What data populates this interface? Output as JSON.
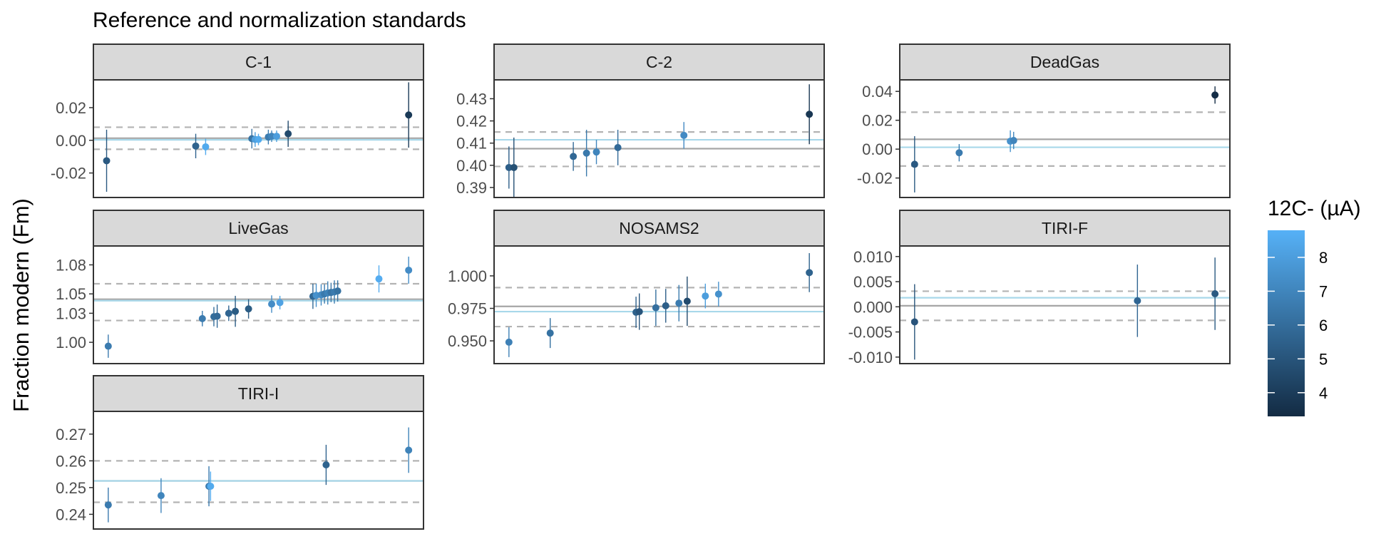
{
  "title": "Reference and normalization standards",
  "ylabel": "Fraction modern (Fm)",
  "legend": {
    "title": "12C- (µA)",
    "range": [
      3.3,
      8.8
    ],
    "ticks": [
      4,
      5,
      6,
      7,
      8
    ],
    "tick_labels": [
      "4",
      "5",
      "6",
      "7",
      "8"
    ],
    "colors": {
      "low": "#132B43",
      "high": "#56B1F7"
    }
  },
  "colors": {
    "strip_fill": "#d9d9d9",
    "consensus_line": "#a6a6a6",
    "mean_line": "#a8d8ea",
    "dashed_line": "#b3b3b3",
    "panel_border": "#333333"
  },
  "chart_data": [
    {
      "type": "scatter",
      "panel": "C-1",
      "ylim": [
        -0.035,
        0.037
      ],
      "ticks": [
        -0.02,
        0.0,
        0.02
      ],
      "tick_labels": [
        "-0.02",
        "0.00",
        "0.02"
      ],
      "consensus": 0.0013,
      "mean": 0.0003,
      "sd_band": [
        -0.0055,
        0.008
      ],
      "points": [
        {
          "x": 0.04,
          "y": -0.0125,
          "err": 0.019,
          "c": 5.2
        },
        {
          "x": 0.31,
          "y": -0.0035,
          "err": 0.0075,
          "c": 5.6
        },
        {
          "x": 0.34,
          "y": -0.004,
          "err": 0.005,
          "c": 8.5
        },
        {
          "x": 0.48,
          "y": 0.001,
          "err": 0.006,
          "c": 6.3
        },
        {
          "x": 0.49,
          "y": 0.0005,
          "err": 0.0045,
          "c": 8.0
        },
        {
          "x": 0.5,
          "y": 0.0005,
          "err": 0.0035,
          "c": 8.5
        },
        {
          "x": 0.53,
          "y": 0.002,
          "err": 0.0045,
          "c": 6.6
        },
        {
          "x": 0.54,
          "y": 0.0025,
          "err": 0.0035,
          "c": 7.0
        },
        {
          "x": 0.555,
          "y": 0.0025,
          "err": 0.0035,
          "c": 8.0
        },
        {
          "x": 0.59,
          "y": 0.004,
          "err": 0.008,
          "c": 4.6
        },
        {
          "x": 0.955,
          "y": 0.0155,
          "err": 0.02,
          "c": 3.9
        }
      ]
    },
    {
      "type": "scatter",
      "panel": "C-2",
      "ylim": [
        0.3855,
        0.4385
      ],
      "ticks": [
        0.39,
        0.4,
        0.41,
        0.42,
        0.43
      ],
      "tick_labels": [
        "0.39",
        "0.40",
        "0.41",
        "0.42",
        "0.43"
      ],
      "consensus": 0.4075,
      "mean": 0.4115,
      "sd_band": [
        0.3995,
        0.415
      ],
      "points": [
        {
          "x": 0.045,
          "y": 0.399,
          "err": 0.0095,
          "c": 5.4
        },
        {
          "x": 0.06,
          "y": 0.399,
          "err": 0.0135,
          "c": 4.8
        },
        {
          "x": 0.24,
          "y": 0.404,
          "err": 0.0065,
          "c": 5.8
        },
        {
          "x": 0.28,
          "y": 0.4055,
          "err": 0.0105,
          "c": 6.5
        },
        {
          "x": 0.31,
          "y": 0.406,
          "err": 0.0055,
          "c": 7.0
        },
        {
          "x": 0.375,
          "y": 0.408,
          "err": 0.008,
          "c": 5.9
        },
        {
          "x": 0.575,
          "y": 0.4135,
          "err": 0.006,
          "c": 7.2
        },
        {
          "x": 0.955,
          "y": 0.423,
          "err": 0.0135,
          "c": 3.8
        }
      ]
    },
    {
      "type": "scatter",
      "panel": "DeadGas",
      "ylim": [
        -0.0335,
        0.048
      ],
      "ticks": [
        -0.02,
        0.0,
        0.02,
        0.04
      ],
      "tick_labels": [
        "-0.02",
        "0.00",
        "0.02",
        "0.04"
      ],
      "consensus": 0.0068,
      "mean": 0.0013,
      "sd_band": [
        -0.0117,
        0.0256
      ],
      "points": [
        {
          "x": 0.045,
          "y": -0.0105,
          "err": 0.0195,
          "c": 5.2
        },
        {
          "x": 0.18,
          "y": -0.0025,
          "err": 0.006,
          "c": 6.6
        },
        {
          "x": 0.335,
          "y": 0.0055,
          "err": 0.0075,
          "c": 7.5
        },
        {
          "x": 0.345,
          "y": 0.006,
          "err": 0.006,
          "c": 7.0
        },
        {
          "x": 0.955,
          "y": 0.0375,
          "err": 0.006,
          "c": 3.4
        }
      ]
    },
    {
      "type": "scatter",
      "panel": "LiveGas",
      "ylim": [
        0.978,
        1.0995
      ],
      "ticks": [
        1.0,
        1.03,
        1.05,
        1.08
      ],
      "tick_labels": [
        "1.00",
        "1.03",
        "1.05",
        "1.08"
      ],
      "consensus": 1.0445,
      "mean": 1.043,
      "sd_band": [
        1.0225,
        1.0605
      ],
      "points": [
        {
          "x": 0.045,
          "y": 0.996,
          "err": 0.012,
          "c": 6.6
        },
        {
          "x": 0.33,
          "y": 1.0245,
          "err": 0.008,
          "c": 6.6
        },
        {
          "x": 0.365,
          "y": 1.0265,
          "err": 0.01,
          "c": 6.0
        },
        {
          "x": 0.375,
          "y": 1.027,
          "err": 0.012,
          "c": 5.9
        },
        {
          "x": 0.41,
          "y": 1.03,
          "err": 0.008,
          "c": 5.7
        },
        {
          "x": 0.43,
          "y": 1.032,
          "err": 0.016,
          "c": 5.3
        },
        {
          "x": 0.47,
          "y": 1.0345,
          "err": 0.01,
          "c": 5.3
        },
        {
          "x": 0.54,
          "y": 1.0395,
          "err": 0.009,
          "c": 7.3
        },
        {
          "x": 0.565,
          "y": 1.041,
          "err": 0.007,
          "c": 8.2
        },
        {
          "x": 0.665,
          "y": 1.0475,
          "err": 0.013,
          "c": 5.8
        },
        {
          "x": 0.675,
          "y": 1.0485,
          "err": 0.012,
          "c": 7.5
        },
        {
          "x": 0.69,
          "y": 1.049,
          "err": 0.011,
          "c": 7.2
        },
        {
          "x": 0.7,
          "y": 1.05,
          "err": 0.01,
          "c": 6.5
        },
        {
          "x": 0.71,
          "y": 1.051,
          "err": 0.012,
          "c": 6.9
        },
        {
          "x": 0.72,
          "y": 1.0515,
          "err": 0.01,
          "c": 6.3
        },
        {
          "x": 0.73,
          "y": 1.052,
          "err": 0.012,
          "c": 6.6
        },
        {
          "x": 0.74,
          "y": 1.053,
          "err": 0.011,
          "c": 6.2
        },
        {
          "x": 0.865,
          "y": 1.0655,
          "err": 0.014,
          "c": 8.6
        },
        {
          "x": 0.955,
          "y": 1.0745,
          "err": 0.014,
          "c": 7.3
        }
      ]
    },
    {
      "type": "scatter",
      "panel": "NOSAMS2",
      "ylim": [
        0.9325,
        1.023
      ],
      "ticks": [
        0.95,
        0.975,
        1.0
      ],
      "tick_labels": [
        "0.950",
        "0.975",
        "1.000"
      ],
      "consensus": 0.9765,
      "mean": 0.9725,
      "sd_band": [
        0.961,
        0.991
      ],
      "points": [
        {
          "x": 0.045,
          "y": 0.949,
          "err": 0.0115,
          "c": 6.8
        },
        {
          "x": 0.17,
          "y": 0.956,
          "err": 0.0115,
          "c": 6.2
        },
        {
          "x": 0.43,
          "y": 0.972,
          "err": 0.012,
          "c": 5.5
        },
        {
          "x": 0.44,
          "y": 0.9725,
          "err": 0.014,
          "c": 5.0
        },
        {
          "x": 0.49,
          "y": 0.9755,
          "err": 0.014,
          "c": 6.1
        },
        {
          "x": 0.52,
          "y": 0.977,
          "err": 0.013,
          "c": 5.4
        },
        {
          "x": 0.56,
          "y": 0.979,
          "err": 0.014,
          "c": 6.6
        },
        {
          "x": 0.585,
          "y": 0.9805,
          "err": 0.019,
          "c": 4.6
        },
        {
          "x": 0.64,
          "y": 0.9845,
          "err": 0.0095,
          "c": 8.0
        },
        {
          "x": 0.68,
          "y": 0.986,
          "err": 0.0095,
          "c": 7.5
        },
        {
          "x": 0.955,
          "y": 1.0025,
          "err": 0.015,
          "c": 5.6
        }
      ]
    },
    {
      "type": "scatter",
      "panel": "TIRI-F",
      "ylim": [
        -0.0113,
        0.0121
      ],
      "ticks": [
        -0.01,
        -0.005,
        0.0,
        0.005,
        0.01
      ],
      "tick_labels": [
        "-0.010",
        "-0.005",
        "0.000",
        "0.005",
        "0.010"
      ],
      "consensus": 0.0002,
      "mean": 0.0018,
      "sd_band": [
        -0.0027,
        0.0031
      ],
      "points": [
        {
          "x": 0.045,
          "y": -0.003,
          "err": 0.0075,
          "c": 5.0
        },
        {
          "x": 0.72,
          "y": 0.0012,
          "err": 0.0072,
          "c": 5.7
        },
        {
          "x": 0.955,
          "y": 0.0026,
          "err": 0.0072,
          "c": 5.2
        }
      ]
    },
    {
      "type": "scatter",
      "panel": "TIRI-I",
      "ylim": [
        0.2345,
        0.2785
      ],
      "ticks": [
        0.24,
        0.25,
        0.26,
        0.27
      ],
      "tick_labels": [
        "0.24",
        "0.25",
        "0.26",
        "0.27"
      ],
      "consensus": 0.2525,
      "mean": 0.2525,
      "sd_band": [
        0.2445,
        0.26
      ],
      "points": [
        {
          "x": 0.045,
          "y": 0.2435,
          "err": 0.0065,
          "c": 6.6
        },
        {
          "x": 0.205,
          "y": 0.247,
          "err": 0.0065,
          "c": 7.0
        },
        {
          "x": 0.35,
          "y": 0.2505,
          "err": 0.0075,
          "c": 6.6
        },
        {
          "x": 0.355,
          "y": 0.2505,
          "err": 0.0055,
          "c": 8.5
        },
        {
          "x": 0.705,
          "y": 0.2585,
          "err": 0.0075,
          "c": 5.6
        },
        {
          "x": 0.955,
          "y": 0.264,
          "err": 0.0085,
          "c": 6.9
        }
      ]
    }
  ]
}
